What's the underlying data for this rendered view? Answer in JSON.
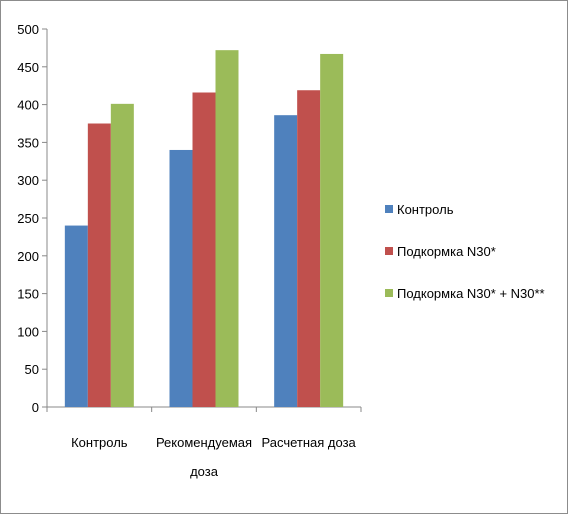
{
  "chart_data": {
    "type": "bar",
    "title": "",
    "xlabel": "",
    "ylabel": "",
    "categories": [
      "Контроль",
      "Рекомендуемая доза",
      "Расчетная доза"
    ],
    "category_label_lines": [
      [
        "Контроль"
      ],
      [
        "Рекомендуемая",
        "доза"
      ],
      [
        "Расчетная доза"
      ]
    ],
    "series": [
      {
        "name": "Контроль",
        "color": "#4F81BD",
        "values": [
          240,
          340,
          386
        ]
      },
      {
        "name": "Подкормка N30*",
        "color": "#C0504D",
        "values": [
          375,
          416,
          419
        ]
      },
      {
        "name": "Подкормка N30* + N30**",
        "color": "#9BBB59",
        "values": [
          401,
          472,
          467
        ]
      }
    ],
    "ylim": [
      0,
      500
    ],
    "yticks": [
      0,
      50,
      100,
      150,
      200,
      250,
      300,
      350,
      400,
      450,
      500
    ],
    "grid": false,
    "legend": "right"
  }
}
